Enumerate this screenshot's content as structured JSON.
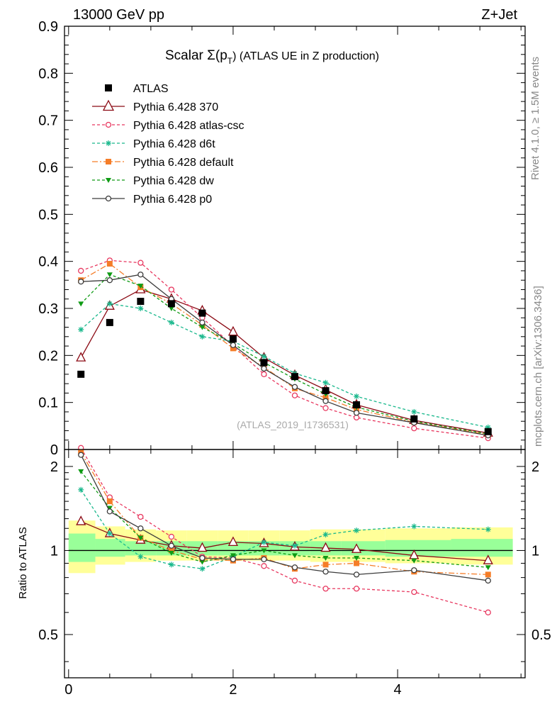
{
  "header": {
    "left": "13000 GeV pp",
    "right": "Z+Jet"
  },
  "side_labels": {
    "rivet": "Rivet 4.1.0, ≥ 1.5M events",
    "mcplots": "mcplots.cern.ch [arXiv:1306.3436]"
  },
  "chart_data": {
    "type": "line",
    "title_prefix": "Scalar Σ(p",
    "title_sub": "T",
    "title_suffix": ") (ATLAS UE in Z production)",
    "analysis_id": "(ATLAS_2019_I1736531)",
    "x": [
      0.15,
      0.5,
      0.875,
      1.25,
      1.625,
      2.0,
      2.375,
      2.75,
      3.125,
      3.5,
      4.2,
      5.1
    ],
    "main": {
      "ylim": [
        0,
        0.9
      ],
      "yticks": [
        0,
        0.1,
        0.2,
        0.3,
        0.4,
        0.5,
        0.6,
        0.7,
        0.8,
        0.9
      ],
      "ytick_labels": [
        "0",
        "0.1",
        "0.2",
        "0.3",
        "0.4",
        "0.5",
        "0.6",
        "0.7",
        "0.8",
        "0.9"
      ]
    },
    "ratio": {
      "ylabel": "Ratio to ATLAS",
      "ylim": [
        0.35,
        2.3
      ],
      "yticks": [
        0.5,
        1,
        2
      ],
      "ytick_labels": [
        "0.5",
        "1",
        "2"
      ],
      "band_yellow": [
        [
          0.83,
          1.28
        ],
        [
          0.89,
          1.22
        ],
        [
          0.91,
          1.19
        ],
        [
          0.92,
          1.18
        ],
        [
          0.92,
          1.18
        ],
        [
          0.92,
          1.18
        ],
        [
          0.92,
          1.18
        ],
        [
          0.92,
          1.18
        ],
        [
          0.91,
          1.19
        ],
        [
          0.91,
          1.19
        ],
        [
          0.9,
          1.2
        ],
        [
          0.89,
          1.21
        ]
      ],
      "band_green": [
        [
          0.91,
          1.15
        ],
        [
          0.95,
          1.1
        ],
        [
          0.96,
          1.08
        ],
        [
          0.96,
          1.08
        ],
        [
          0.96,
          1.08
        ],
        [
          0.96,
          1.08
        ],
        [
          0.96,
          1.08
        ],
        [
          0.96,
          1.08
        ],
        [
          0.96,
          1.08
        ],
        [
          0.96,
          1.08
        ],
        [
          0.95,
          1.09
        ],
        [
          0.95,
          1.1
        ]
      ]
    },
    "xlim": [
      -0.05,
      5.55
    ],
    "xticks": [
      0,
      2,
      4
    ],
    "xtick_labels": [
      "0",
      "2",
      "4"
    ],
    "data_series": {
      "name": "ATLAS",
      "values": [
        0.16,
        0.27,
        0.315,
        0.31,
        0.29,
        0.235,
        0.185,
        0.155,
        0.125,
        0.095,
        0.065,
        0.038
      ]
    },
    "series": [
      {
        "name": "Pythia 6.428 370",
        "color": "#8b0a14",
        "dash": "",
        "marker": "triangle-open",
        "values": [
          0.195,
          0.305,
          0.34,
          0.32,
          0.295,
          0.25,
          0.195,
          0.158,
          0.127,
          0.095,
          0.062,
          0.035
        ],
        "ratio": [
          1.27,
          1.15,
          1.09,
          1.04,
          1.02,
          1.07,
          1.06,
          1.03,
          1.02,
          1.01,
          0.96,
          0.92
        ]
      },
      {
        "name": "Pythia 6.428 atlas-csc",
        "color": "#e8375f",
        "dash": "4,3",
        "marker": "circle-open",
        "values": [
          0.38,
          0.402,
          0.397,
          0.34,
          0.28,
          0.22,
          0.16,
          0.115,
          0.088,
          0.068,
          0.045,
          0.024
        ],
        "ratio": [
          2.33,
          1.55,
          1.32,
          1.12,
          0.95,
          0.94,
          0.88,
          0.78,
          0.73,
          0.73,
          0.71,
          0.6
        ]
      },
      {
        "name": "Pythia 6.428 d6t",
        "color": "#19b88c",
        "dash": "4,3",
        "marker": "asterisk",
        "values": [
          0.255,
          0.31,
          0.3,
          0.27,
          0.24,
          0.23,
          0.198,
          0.162,
          0.142,
          0.113,
          0.08,
          0.047
        ],
        "ratio": [
          1.65,
          1.15,
          0.95,
          0.89,
          0.86,
          0.95,
          1.07,
          1.04,
          1.14,
          1.18,
          1.22,
          1.19
        ]
      },
      {
        "name": "Pythia 6.428 default",
        "color": "#f57d28",
        "dash": "8,3,2,3",
        "marker": "square",
        "values": [
          0.36,
          0.395,
          0.345,
          0.31,
          0.265,
          0.215,
          0.175,
          0.13,
          0.11,
          0.085,
          0.058,
          0.032
        ],
        "ratio": [
          2.25,
          1.5,
          1.11,
          1.0,
          0.93,
          0.92,
          0.94,
          0.86,
          0.89,
          0.9,
          0.84,
          0.82
        ]
      },
      {
        "name": "Pythia 6.428 dw",
        "color": "#0f9b14",
        "dash": "4,3",
        "marker": "triangle-down",
        "values": [
          0.31,
          0.372,
          0.348,
          0.3,
          0.26,
          0.225,
          0.185,
          0.15,
          0.118,
          0.09,
          0.06,
          0.033
        ],
        "ratio": [
          1.92,
          1.42,
          1.11,
          0.98,
          0.91,
          0.96,
          1.0,
          0.96,
          0.94,
          0.94,
          0.92,
          0.87
        ]
      },
      {
        "name": "Pythia 6.428 p0",
        "color": "#3c3c3c",
        "dash": "",
        "marker": "circle-open",
        "values": [
          0.357,
          0.36,
          0.372,
          0.32,
          0.27,
          0.222,
          0.172,
          0.133,
          0.103,
          0.078,
          0.057,
          0.03
        ],
        "ratio": [
          2.2,
          1.38,
          1.2,
          1.04,
          0.94,
          0.93,
          0.93,
          0.87,
          0.84,
          0.82,
          0.85,
          0.78
        ]
      }
    ]
  }
}
